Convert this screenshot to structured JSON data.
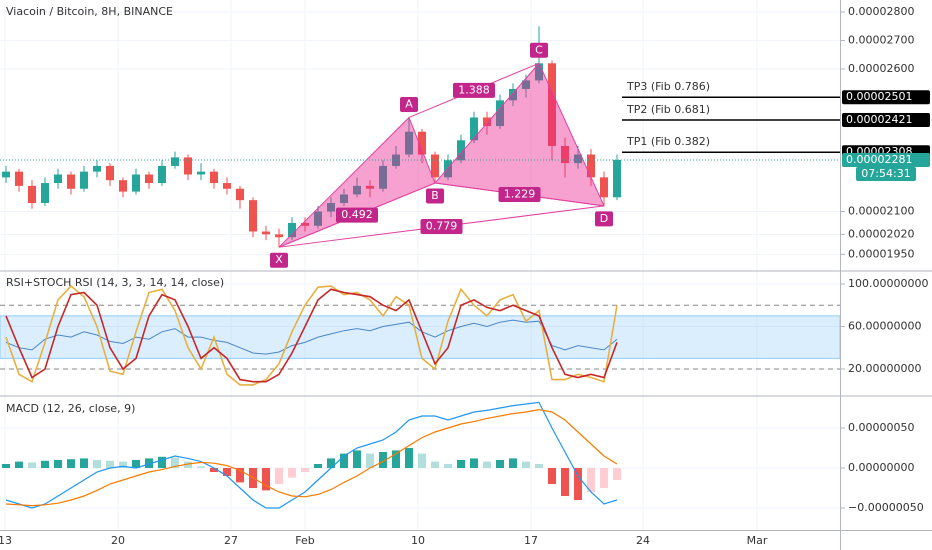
{
  "chart_data": [
    {
      "type": "candlestick",
      "title": "Viacoin / Bitcoin, 8H, BINANCE",
      "categories": [
        "13",
        "20",
        "27",
        "Feb",
        "10",
        "17",
        "24",
        "Mar"
      ],
      "up_color": "#26a69a",
      "down_color": "#ef5350",
      "candles": [
        [
          2.22e-05,
          2.26e-05,
          2.2e-05,
          2.24e-05
        ],
        [
          2.24e-05,
          2.25e-05,
          2.17e-05,
          2.19e-05
        ],
        [
          2.19e-05,
          2.21e-05,
          2.11e-05,
          2.13e-05
        ],
        [
          2.13e-05,
          2.22e-05,
          2.12e-05,
          2.2e-05
        ],
        [
          2.2e-05,
          2.25e-05,
          2.18e-05,
          2.23e-05
        ],
        [
          2.23e-05,
          2.24e-05,
          2.16e-05,
          2.18e-05
        ],
        [
          2.18e-05,
          2.26e-05,
          2.17e-05,
          2.24e-05
        ],
        [
          2.24e-05,
          2.28e-05,
          2.22e-05,
          2.26e-05
        ],
        [
          2.26e-05,
          2.27e-05,
          2.19e-05,
          2.21e-05
        ],
        [
          2.21e-05,
          2.22e-05,
          2.15e-05,
          2.17e-05
        ],
        [
          2.17e-05,
          2.25e-05,
          2.16e-05,
          2.23e-05
        ],
        [
          2.23e-05,
          2.24e-05,
          2.18e-05,
          2.2e-05
        ],
        [
          2.2e-05,
          2.28e-05,
          2.19e-05,
          2.26e-05
        ],
        [
          2.26e-05,
          2.31e-05,
          2.25e-05,
          2.29e-05
        ],
        [
          2.29e-05,
          2.3e-05,
          2.21e-05,
          2.23e-05
        ],
        [
          2.23e-05,
          2.27e-05,
          2.21e-05,
          2.24e-05
        ],
        [
          2.24e-05,
          2.25e-05,
          2.18e-05,
          2.2e-05
        ],
        [
          2.2e-05,
          2.22e-05,
          2.16e-05,
          2.18e-05
        ],
        [
          2.18e-05,
          2.19e-05,
          2.11e-05,
          2.14e-05
        ],
        [
          2.14e-05,
          2.15e-05,
          2.01e-05,
          2.03e-05
        ],
        [
          2.03e-05,
          2.05e-05,
          2e-05,
          2.02e-05
        ],
        [
          2.02e-05,
          2.04e-05,
          1.975e-05,
          2.01e-05
        ],
        [
          2.01e-05,
          2.08e-05,
          2e-05,
          2.06e-05
        ],
        [
          2.06e-05,
          2.08e-05,
          2.03e-05,
          2.05e-05
        ],
        [
          2.05e-05,
          2.12e-05,
          2.04e-05,
          2.1e-05
        ],
        [
          2.1e-05,
          2.15e-05,
          2.08e-05,
          2.13e-05
        ],
        [
          2.13e-05,
          2.18e-05,
          2.12e-05,
          2.16e-05
        ],
        [
          2.16e-05,
          2.22e-05,
          2.15e-05,
          2.19e-05
        ],
        [
          2.19e-05,
          2.21e-05,
          2.15e-05,
          2.18e-05
        ],
        [
          2.18e-05,
          2.28e-05,
          2.17e-05,
          2.26e-05
        ],
        [
          2.26e-05,
          2.33e-05,
          2.25e-05,
          2.3e-05
        ],
        [
          2.3e-05,
          2.43e-05,
          2.29e-05,
          2.38e-05
        ],
        [
          2.38e-05,
          2.39e-05,
          2.27e-05,
          2.3e-05
        ],
        [
          2.3e-05,
          2.31e-05,
          2.2e-05,
          2.22e-05
        ],
        [
          2.22e-05,
          2.3e-05,
          2.21e-05,
          2.28e-05
        ],
        [
          2.28e-05,
          2.37e-05,
          2.27e-05,
          2.35e-05
        ],
        [
          2.35e-05,
          2.45e-05,
          2.34e-05,
          2.43e-05
        ],
        [
          2.43e-05,
          2.45e-05,
          2.37e-05,
          2.4e-05
        ],
        [
          2.4e-05,
          2.51e-05,
          2.39e-05,
          2.49e-05
        ],
        [
          2.49e-05,
          2.55e-05,
          2.47e-05,
          2.53e-05
        ],
        [
          2.53e-05,
          2.58e-05,
          2.5e-05,
          2.56e-05
        ],
        [
          2.56e-05,
          2.75e-05,
          2.55e-05,
          2.62e-05
        ],
        [
          2.62e-05,
          2.63e-05,
          2.28e-05,
          2.33e-05
        ],
        [
          2.33e-05,
          2.36e-05,
          2.22e-05,
          2.27e-05
        ],
        [
          2.27e-05,
          2.33e-05,
          2.25e-05,
          2.3e-05
        ],
        [
          2.3e-05,
          2.32e-05,
          2.19e-05,
          2.22e-05
        ],
        [
          2.22e-05,
          2.24e-05,
          2.12e-05,
          2.15e-05
        ],
        [
          2.15e-05,
          2.3e-05,
          2.14e-05,
          2.281e-05
        ]
      ],
      "ylim": [
        1.895e-05,
        2.842e-05
      ],
      "yticks": [
        {
          "value": 2.8e-05,
          "label": "0.00002800"
        },
        {
          "value": 2.7e-05,
          "label": "0.00002700"
        },
        {
          "value": 2.6e-05,
          "label": "0.00002600"
        },
        {
          "value": 2.1e-05,
          "label": "0.00002100"
        },
        {
          "value": 2.02e-05,
          "label": "0.00002020"
        },
        {
          "value": 1.95e-05,
          "label": "0.00001950"
        }
      ],
      "pattern": {
        "color": "#e040a0",
        "fill": "rgba(233,30,140,0.42)",
        "label_color": "#c2268a",
        "points": [
          {
            "label": "X",
            "value": 1.975e-05,
            "at": 21
          },
          {
            "label": "A",
            "value": 2.43e-05,
            "at": 31
          },
          {
            "label": "B",
            "value": 2.2e-05,
            "at": 33
          },
          {
            "label": "C",
            "value": 2.62e-05,
            "at": 41
          },
          {
            "label": "D",
            "value": 2.12e-05,
            "at": 46
          }
        ],
        "ratios": [
          "0.492",
          "1.388",
          "1.229",
          "0.779"
        ]
      },
      "targets": [
        {
          "name": "TP3 (Fib 0.786)",
          "price": {
            "value": 2.501e-05,
            "label": "0.00002501"
          }
        },
        {
          "name": "TP2 (Fib 0.681)",
          "price": {
            "value": 2.421e-05,
            "label": "0.00002421"
          }
        },
        {
          "name": "TP1 (Fib 0.382)",
          "price": {
            "value": 2.308e-05,
            "label": "0.00002308"
          }
        }
      ],
      "last": {
        "value": 2.281e-05,
        "label": "0.00002281"
      },
      "countdown": "07:54:31",
      "last_color": "#26a69a"
    },
    {
      "type": "line",
      "title": "RSI+STOCH RSI (14, 3, 3, 14, 14, close)",
      "ylim": [
        -4.5,
        111.3
      ],
      "yticks": [
        {
          "value": 100,
          "label": "100.00000000"
        },
        {
          "value": 60,
          "label": "60.00000000"
        },
        {
          "value": 20,
          "label": "20.00000000"
        }
      ],
      "band": [
        30,
        70
      ],
      "band_color": "rgba(33,150,243,0.16)",
      "levels": [
        20,
        80
      ],
      "series": [
        {
          "color": "#4a86c8",
          "values": [
            45,
            40,
            38,
            48,
            52,
            50,
            55,
            52,
            46,
            44,
            50,
            48,
            55,
            58,
            50,
            50,
            47,
            45,
            40,
            35,
            34,
            36,
            42,
            45,
            50,
            53,
            56,
            58,
            56,
            60,
            62,
            64,
            55,
            50,
            56,
            60,
            63,
            60,
            64,
            66,
            64,
            65,
            42,
            38,
            42,
            40,
            38,
            48
          ]
        },
        {
          "color": "#e8b040",
          "values": [
            50,
            15,
            8,
            45,
            85,
            98,
            88,
            60,
            18,
            15,
            55,
            92,
            95,
            75,
            40,
            20,
            50,
            15,
            5,
            5,
            10,
            25,
            55,
            80,
            97,
            98,
            90,
            92,
            85,
            70,
            88,
            80,
            30,
            20,
            65,
            95,
            80,
            70,
            85,
            90,
            65,
            75,
            10,
            10,
            15,
            12,
            8,
            80
          ]
        },
        {
          "color": "#c62828",
          "values": [
            70,
            40,
            12,
            20,
            60,
            90,
            92,
            80,
            40,
            20,
            30,
            70,
            90,
            85,
            60,
            30,
            40,
            30,
            10,
            8,
            8,
            15,
            35,
            60,
            85,
            95,
            92,
            90,
            88,
            80,
            75,
            85,
            55,
            25,
            40,
            80,
            85,
            78,
            75,
            80,
            75,
            70,
            40,
            15,
            12,
            15,
            12,
            45
          ]
        }
      ]
    },
    {
      "type": "macd",
      "title": "MACD (12, 26, close, 9)",
      "ylim": [
        -7.75e-07,
        8.875e-07
      ],
      "yticks": [
        {
          "value": 5e-07,
          "label": "0.00000050"
        },
        {
          "value": 0,
          "label": "0.00000000"
        },
        {
          "value": -5e-07,
          "label": "−0.00000050"
        }
      ],
      "histogram": {
        "colors": {
          "up_rising": "#26a69a",
          "up_falling": "#b2dfdb",
          "down_falling": "#ef5350",
          "down_rising": "#ffcdd2"
        },
        "values": [
          5e-08,
          8e-08,
          7e-08,
          9e-08,
          1e-07,
          1.1e-07,
          1.2e-07,
          1e-07,
          9e-08,
          8e-08,
          1e-07,
          1.2e-07,
          1.4e-07,
          1.3e-07,
          8e-08,
          2e-08,
          -5e-08,
          -1e-07,
          -1.8e-07,
          -2.5e-07,
          -2.8e-07,
          -2e-07,
          -1.2e-07,
          -5e-08,
          5e-08,
          1.2e-07,
          1.8e-07,
          2.2e-07,
          1.8e-07,
          2e-07,
          2.2e-07,
          2.5e-07,
          1.8e-07,
          8e-08,
          5e-08,
          1e-07,
          1.2e-07,
          8e-08,
          1e-07,
          1.2e-07,
          8e-08,
          5e-08,
          -2e-07,
          -3.5e-07,
          -4e-07,
          -3e-07,
          -2.5e-07,
          -1.5e-07
        ]
      },
      "series": [
        {
          "color": "#2196f3",
          "values": [
            -4e-07,
            -4.5e-07,
            -5e-07,
            -4.5e-07,
            -3.5e-07,
            -2.5e-07,
            -1.5e-07,
            -5e-08,
            0,
            2e-08,
            0,
            5e-08,
            1e-07,
            1.5e-07,
            1.2e-07,
            8e-08,
            0,
            -1e-07,
            -2.5e-07,
            -4e-07,
            -5e-07,
            -5e-07,
            -4e-07,
            -3e-07,
            -1.5e-07,
            0,
            1.5e-07,
            2.5e-07,
            3e-07,
            3.5e-07,
            4.5e-07,
            6e-07,
            6.5e-07,
            6.5e-07,
            6e-07,
            6.5e-07,
            7e-07,
            7.2e-07,
            7.5e-07,
            7.8e-07,
            8e-07,
            8.2e-07,
            5e-07,
            2e-07,
            -1e-07,
            -3e-07,
            -4.5e-07,
            -4e-07
          ]
        },
        {
          "color": "#f57c00",
          "values": [
            -4.5e-07,
            -4.6e-07,
            -4.7e-07,
            -4.6e-07,
            -4.4e-07,
            -4e-07,
            -3.5e-07,
            -2.8e-07,
            -2e-07,
            -1.5e-07,
            -1e-07,
            -5e-08,
            -2e-08,
            2e-08,
            5e-08,
            7e-08,
            6e-08,
            3e-08,
            -3e-08,
            -1.2e-07,
            -2.2e-07,
            -3e-07,
            -3.5e-07,
            -3.6e-07,
            -3.3e-07,
            -2.7e-07,
            -1.8e-07,
            -1e-07,
            0,
            8e-08,
            1.8e-07,
            2.8e-07,
            3.8e-07,
            4.5e-07,
            5e-07,
            5.5e-07,
            5.8e-07,
            6.2e-07,
            6.5e-07,
            6.8e-07,
            7e-07,
            7.3e-07,
            7e-07,
            6e-07,
            4.5e-07,
            3e-07,
            1.5e-07,
            5e-08
          ]
        }
      ]
    }
  ]
}
